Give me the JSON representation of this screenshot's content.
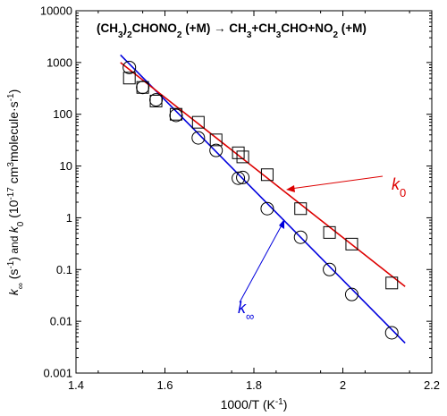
{
  "chart_data": {
    "type": "scatter",
    "title_parts": [
      "(CH",
      "3",
      ")",
      "2",
      "CHONO",
      "2",
      " (+M) → CH",
      "3",
      "+CH",
      "3",
      "CHO+NO",
      "2",
      " (+M)"
    ],
    "xlabel": "1000/T (K",
    "xlabel_sup": "-1",
    "xlabel_end": ")",
    "ylabel_parts": {
      "kinf": "k∞",
      "unit1": " (s",
      "unit1_sup": "-1",
      "unit1_end": ")",
      "and": "and",
      "k0": "k0",
      "unit2": " (10",
      "unit2_sup": "-17",
      "unit2_mid": " cm",
      "unit2_sup2": "3",
      "unit2_end": "molecule·s",
      "unit2_sup3": "-1",
      "unit2_close": ")"
    },
    "x_range": [
      1.4,
      2.2
    ],
    "y_range": [
      0.001,
      10000
    ],
    "y_scale": "log",
    "x_ticks": [
      "1.4",
      "1.6",
      "1.8",
      "2",
      "2.2"
    ],
    "x_tick_values": [
      1.4,
      1.6,
      1.8,
      2.0,
      2.2
    ],
    "y_ticks": [
      "0.001",
      "0.01",
      "0.1",
      "1",
      "10",
      "100",
      "1000",
      "10000"
    ],
    "y_tick_values": [
      0.001,
      0.01,
      0.1,
      1,
      10,
      100,
      1000,
      10000
    ],
    "series": [
      {
        "name": "k∞",
        "label_main": "k",
        "label_sub": "∞",
        "color": "#0000dd",
        "marker": "circle",
        "points": [
          [
            1.52,
            800
          ],
          [
            1.55,
            330
          ],
          [
            1.58,
            190
          ],
          [
            1.625,
            95
          ],
          [
            1.675,
            35
          ],
          [
            1.715,
            20
          ],
          [
            1.765,
            5.8
          ],
          [
            1.775,
            6.0
          ],
          [
            1.83,
            1.5
          ],
          [
            1.905,
            0.42
          ],
          [
            1.97,
            0.1
          ],
          [
            2.02,
            0.033
          ],
          [
            2.11,
            0.006
          ]
        ],
        "fit": [
          [
            1.5,
            1400
          ],
          [
            2.14,
            0.0038
          ]
        ]
      },
      {
        "name": "k0",
        "label_main": "k",
        "label_sub": "0",
        "color": "#dd0000",
        "marker": "square",
        "points": [
          [
            1.52,
            500
          ],
          [
            1.55,
            330
          ],
          [
            1.58,
            180
          ],
          [
            1.625,
            100
          ],
          [
            1.675,
            70
          ],
          [
            1.715,
            32
          ],
          [
            1.765,
            18
          ],
          [
            1.775,
            15
          ],
          [
            1.83,
            6.8
          ],
          [
            1.905,
            1.5
          ],
          [
            1.97,
            0.52
          ],
          [
            2.02,
            0.31
          ],
          [
            2.11,
            0.055
          ]
        ],
        "fit": [
          [
            1.5,
            1000
          ],
          [
            2.14,
            0.047
          ]
        ]
      }
    ]
  }
}
